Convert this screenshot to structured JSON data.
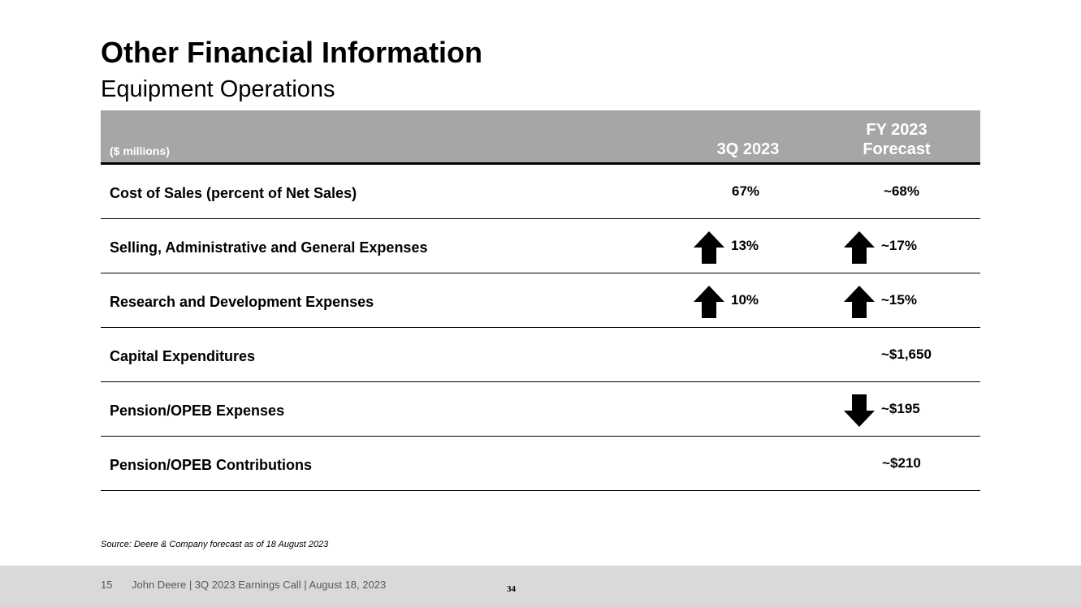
{
  "slide": {
    "title": "Other Financial Information",
    "subtitle": "Equipment Operations"
  },
  "table": {
    "units_label": "($ millions)",
    "col1_header": "3Q 2023",
    "col2_header_line1": "FY 2023",
    "col2_header_line2": "Forecast",
    "rows": [
      {
        "label": "Cost of Sales (percent of Net Sales)",
        "q3": "67%",
        "q3_arrow": "",
        "fy": "~68%",
        "fy_arrow": ""
      },
      {
        "label": "Selling, Administrative and General Expenses",
        "q3": "13%",
        "q3_arrow": "arrow-up-icon",
        "fy": "~17%",
        "fy_arrow": "arrow-up-icon"
      },
      {
        "label": "Research and Development Expenses",
        "q3": "10%",
        "q3_arrow": "arrow-up-icon",
        "fy": "~15%",
        "fy_arrow": "arrow-up-icon"
      },
      {
        "label": "Capital Expenditures",
        "q3": "",
        "q3_arrow": "",
        "fy": "~$1,650",
        "fy_arrow": ""
      },
      {
        "label": "Pension/OPEB Expenses",
        "q3": "",
        "q3_arrow": "",
        "fy": "~$195",
        "fy_arrow": "arrow-down-icon"
      },
      {
        "label": "Pension/OPEB Contributions",
        "q3": "",
        "q3_arrow": "",
        "fy": "~$210",
        "fy_arrow": ""
      }
    ]
  },
  "source_note": "Source: Deere & Company forecast as of 18 August 2023",
  "footer": {
    "page": "15",
    "text": "John Deere | 3Q 2023 Earnings Call | August 18, 2023",
    "slide_number": "34"
  },
  "colors": {
    "header_bg": "#a6a6a6",
    "footer_bg": "#d9d9d9",
    "text": "#000000"
  }
}
